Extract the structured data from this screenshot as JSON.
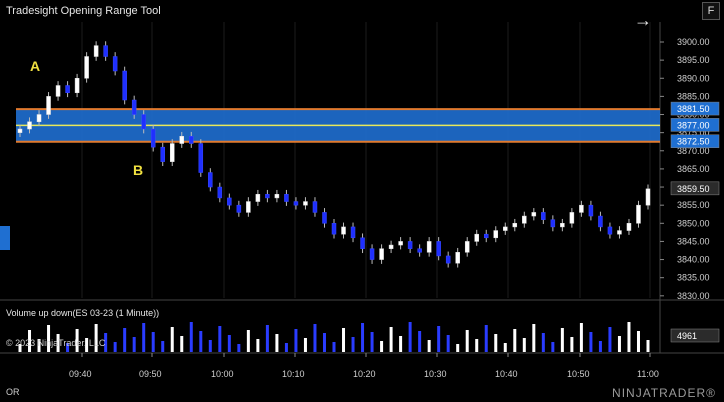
{
  "window": {
    "title": "Tradesight Opening Range Tool",
    "f_button": "F"
  },
  "indicator": {
    "title": "Volume up down(ES 03-23 (1 Minute))",
    "current": "4961"
  },
  "footer": {
    "copyright": "© 2023 NinjaTrader, LLC",
    "left_label": "OR",
    "logo": "NINJATRADER",
    "logo_suffix": "®"
  },
  "annotations": {
    "a": "A",
    "b": "B"
  },
  "price_axis": {
    "ticks": [
      "3900.00",
      "3895.00",
      "3890.00",
      "3885.00",
      "3880.00",
      "3875.00",
      "3870.00",
      "3865.00",
      "3860.00",
      "3855.00",
      "3850.00",
      "3845.00",
      "3840.00",
      "3835.00",
      "3830.00"
    ],
    "badges": [
      "3881.50",
      "3877.00",
      "3872.50",
      "3859.50"
    ]
  },
  "time_axis": {
    "ticks": [
      "09:40",
      "09:50",
      "10:00",
      "10:10",
      "10:20",
      "10:30",
      "10:40",
      "10:50",
      "11:00"
    ]
  },
  "colors": {
    "up_bar": "#ffffff",
    "down_bar": "#1f2fff",
    "range_fill": "#1f6fd1",
    "range_border": "#e07a2f",
    "mid_line": "#e8e85a",
    "badge_blue": "#1f6fd1",
    "badge_dark": "#2b2b2b"
  },
  "chart_data": {
    "type": "candlestick",
    "series_name": "ES 03-23 (1 Minute)",
    "opening_range": {
      "high": 3881.5,
      "mid": 3877.0,
      "low": 3872.5
    },
    "last_price": 3859.5,
    "close_path": [
      3876,
      3878,
      3880,
      3885,
      3888,
      3886,
      3890,
      3896,
      3899,
      3896,
      3892,
      3884,
      3880,
      3876,
      3871,
      3867,
      3872,
      3874,
      3872,
      3864,
      3860,
      3857,
      3855,
      3853,
      3856,
      3858,
      3857,
      3858,
      3856,
      3855,
      3856,
      3853,
      3850,
      3847,
      3849,
      3846,
      3843,
      3840,
      3843,
      3844,
      3845,
      3843,
      3842,
      3845,
      3841,
      3839,
      3842,
      3845,
      3847,
      3846,
      3848,
      3849,
      3850,
      3852,
      3853,
      3851,
      3849,
      3850,
      3853,
      3855,
      3852,
      3849,
      3847,
      3848,
      3850,
      3855,
      3859.5
    ]
  }
}
